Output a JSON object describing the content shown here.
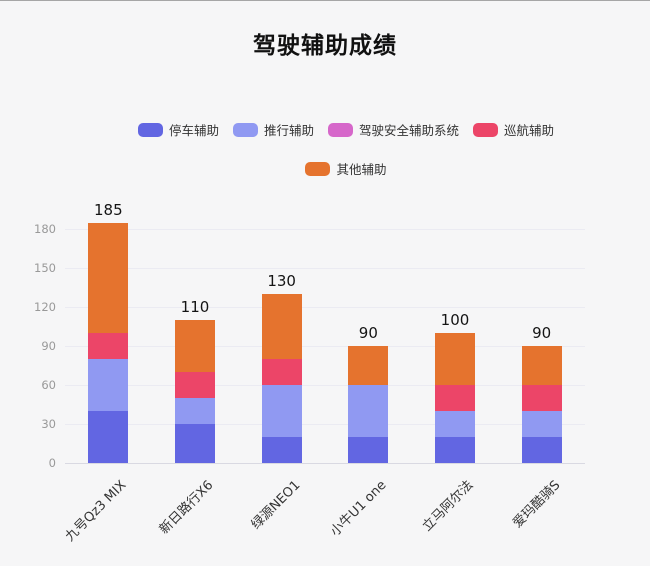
{
  "page": {
    "title": "驾驶辅助成绩"
  },
  "chart_data": {
    "type": "bar",
    "stacked": true,
    "title": "驾驶辅助成绩",
    "categories": [
      "九号Qz3 MIX",
      "新日路行X6",
      "绿源NEO1",
      "小牛U1 one",
      "立马阿尔法",
      "爱玛酷骑S"
    ],
    "series": [
      {
        "name": "停车辅助",
        "color": "#6266e2",
        "values": [
          40,
          30,
          20,
          20,
          20,
          20
        ]
      },
      {
        "name": "推行辅助",
        "color": "#9099f2",
        "values": [
          40,
          20,
          40,
          40,
          20,
          20
        ]
      },
      {
        "name": "驾驶安全辅助系统",
        "color": "#d667ca",
        "values": [
          0,
          0,
          0,
          0,
          0,
          0
        ]
      },
      {
        "name": "巡航辅助",
        "color": "#ec4568",
        "values": [
          20,
          20,
          20,
          0,
          20,
          20
        ]
      },
      {
        "name": "其他辅助",
        "color": "#e5732e",
        "values": [
          85,
          40,
          50,
          30,
          40,
          30
        ]
      }
    ],
    "totals": [
      185,
      110,
      130,
      90,
      100,
      90
    ],
    "xlabel": "",
    "ylabel": "",
    "y_axis": {
      "min": 0,
      "max": 180,
      "step": 30,
      "ticks": [
        0,
        30,
        60,
        90,
        120,
        150,
        180
      ]
    },
    "grid": true,
    "legend_position": "top",
    "legend_rows": [
      [
        0,
        1,
        2,
        3
      ],
      [
        4
      ]
    ]
  },
  "colors": {
    "background": "#f6f6f7",
    "grid_line": "#ebebf2",
    "tick_text": "#999999",
    "category_text": "#333333",
    "value_text": "#141414"
  }
}
